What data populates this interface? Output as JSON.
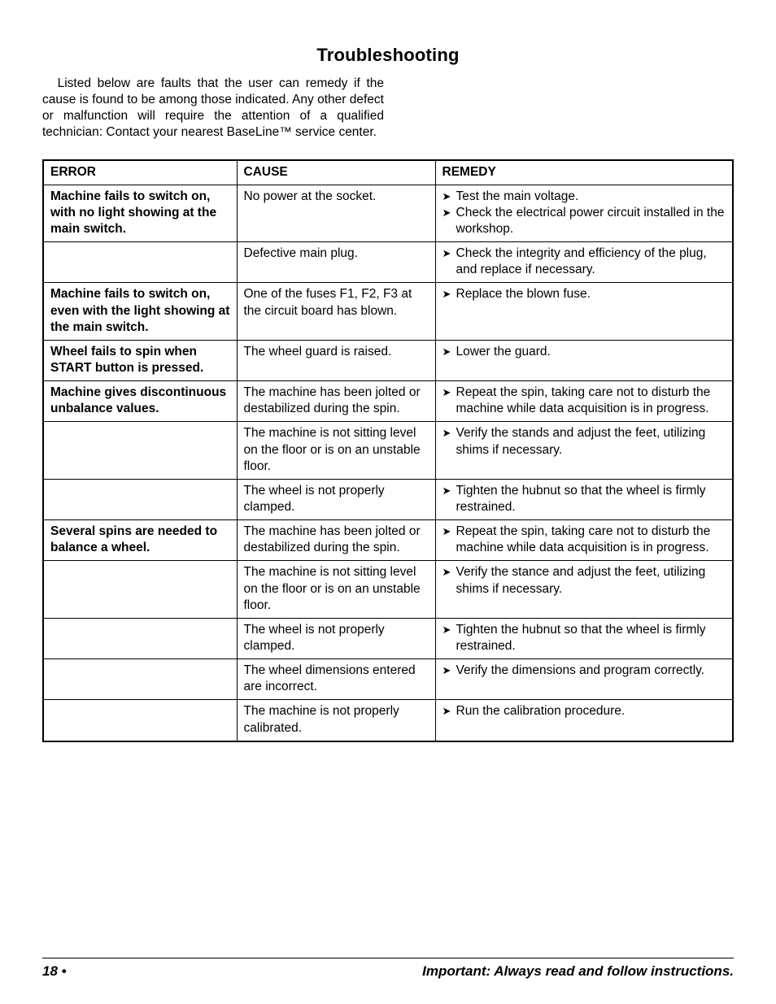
{
  "heading": "Troubleshooting",
  "intro": "Listed below are faults that the user can remedy if the cause is found to be among those indicated. Any other defect or malfunction will require the attention of a qualified technician: Contact your nearest BaseLine™ service center.",
  "columns": {
    "error": "ERROR",
    "cause": "CAUSE",
    "remedy": "REMEDY"
  },
  "rows": [
    {
      "error": "Machine fails to switch on, with no light showing at the main switch.",
      "cause": "No power at the socket.",
      "remedy": [
        "Test the main voltage.",
        "Check the electrical power circuit installed in the workshop."
      ]
    },
    {
      "error": "",
      "cause": "Defective main plug.",
      "remedy": [
        "Check the integrity and efficiency of the plug, and replace if necessary."
      ]
    },
    {
      "error": "Machine fails to switch on, even with the light showing at the main switch.",
      "cause": "One of the fuses F1, F2, F3 at the circuit board has blown.",
      "remedy": [
        "Replace the blown fuse."
      ]
    },
    {
      "error": "Wheel fails to spin when START button is pressed.",
      "cause": "The wheel guard is raised.",
      "remedy": [
        "Lower the guard."
      ]
    },
    {
      "error": "Machine gives discontinuous unbalance values.",
      "cause": "The machine has been jolted or destabilized during the spin.",
      "remedy": [
        "Repeat the spin, taking care not to disturb the machine while data acqui­sition is in progress."
      ]
    },
    {
      "error": "",
      "cause": "The machine is not sitting level on the floor or is on an unstable floor.",
      "remedy": [
        "Verify the stands and adjust the feet, utilizing shims if necessary."
      ]
    },
    {
      "error": "",
      "cause": "The wheel is not properly clamped.",
      "remedy": [
        "Tighten the hubnut so that the wheel is firmly restrained."
      ]
    },
    {
      "error": "Several spins are needed to balance a wheel.",
      "cause": "The machine has been jolted or destabilized during the spin.",
      "remedy": [
        "Repeat the spin, taking care not to disturb the machine while data acqui­sition is in progress."
      ]
    },
    {
      "error": "",
      "cause": "The machine is not sitting level on the floor or is on an unstable floor.",
      "remedy": [
        "Verify the stance and adjust the feet, utilizing shims if necessary."
      ]
    },
    {
      "error": "",
      "cause": "The wheel is not properly clamped.",
      "remedy": [
        "Tighten the hubnut so that the wheel is firmly restrained."
      ]
    },
    {
      "error": "",
      "cause": "The wheel dimensions entered are incorrect.",
      "remedy": [
        "Verify the dimensions and program correctly."
      ]
    },
    {
      "error": "",
      "cause": "The machine is not properly calibrated.",
      "remedy": [
        "Run the calibration procedure."
      ]
    }
  ],
  "footer": {
    "page": "18 •",
    "note": "Important: Always read and follow instructions."
  }
}
